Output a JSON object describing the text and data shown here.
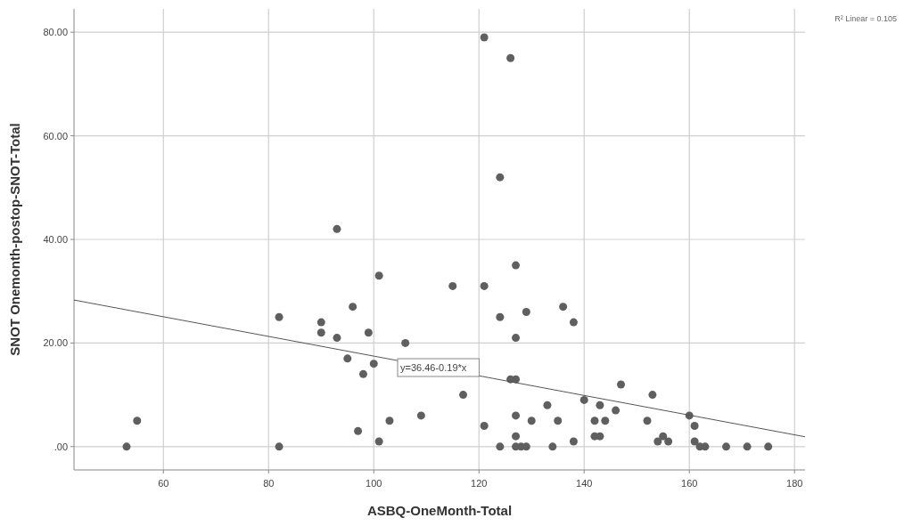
{
  "chart_data": {
    "type": "scatter",
    "xlabel": "ASBQ-OneMonth-Total",
    "ylabel": "SNOT Onemonth-postop-SNOT-Total",
    "xlim": [
      43,
      182
    ],
    "xticks": [
      60,
      80,
      100,
      120,
      140,
      160,
      180
    ],
    "ylim": [
      -4.5,
      84.5
    ],
    "yticks": [
      {
        "value": 0,
        "label": ".00"
      },
      {
        "value": 20,
        "label": "20.00"
      },
      {
        "value": 40,
        "label": "40.00"
      },
      {
        "value": 60,
        "label": "60.00"
      },
      {
        "value": 80,
        "label": "80.00"
      }
    ],
    "grid": true,
    "series": [
      {
        "marker": "circle",
        "color": "#5f5f5f",
        "x": [
          53,
          55,
          82,
          82,
          90,
          90,
          93,
          93,
          95,
          96,
          97,
          98,
          99,
          100,
          101,
          101,
          103,
          106,
          109,
          115,
          117,
          121,
          121,
          121,
          124,
          124,
          124,
          126,
          127,
          127,
          126,
          127,
          127,
          127,
          127,
          128,
          129,
          129,
          130,
          133,
          134,
          135,
          136,
          138,
          138,
          140,
          142,
          142,
          143,
          143,
          144,
          146,
          147,
          152,
          153,
          154,
          155,
          156,
          160,
          161,
          161,
          162,
          163,
          167,
          171,
          175
        ],
        "values": [
          0,
          5,
          25,
          0,
          24,
          22,
          42,
          21,
          17,
          27,
          3,
          14,
          22,
          16,
          33,
          1,
          5,
          20,
          6,
          31,
          10,
          79,
          31,
          4,
          52,
          25,
          0,
          75,
          35,
          21,
          13,
          13,
          6,
          2,
          0,
          0,
          0,
          26,
          5,
          8,
          0,
          5,
          27,
          24,
          1,
          9,
          5,
          2,
          2,
          8,
          5,
          7,
          12,
          5,
          10,
          1,
          2,
          1,
          6,
          4,
          1,
          0,
          0,
          0,
          0,
          0
        ]
      },
      {
        "type": "line",
        "color": "#555555",
        "x": [
          43,
          182
        ],
        "values": [
          28.3,
          1.9
        ]
      }
    ],
    "annotations": [
      "y=36.46-0.19*x",
      "R² Linear = 0.105"
    ]
  }
}
